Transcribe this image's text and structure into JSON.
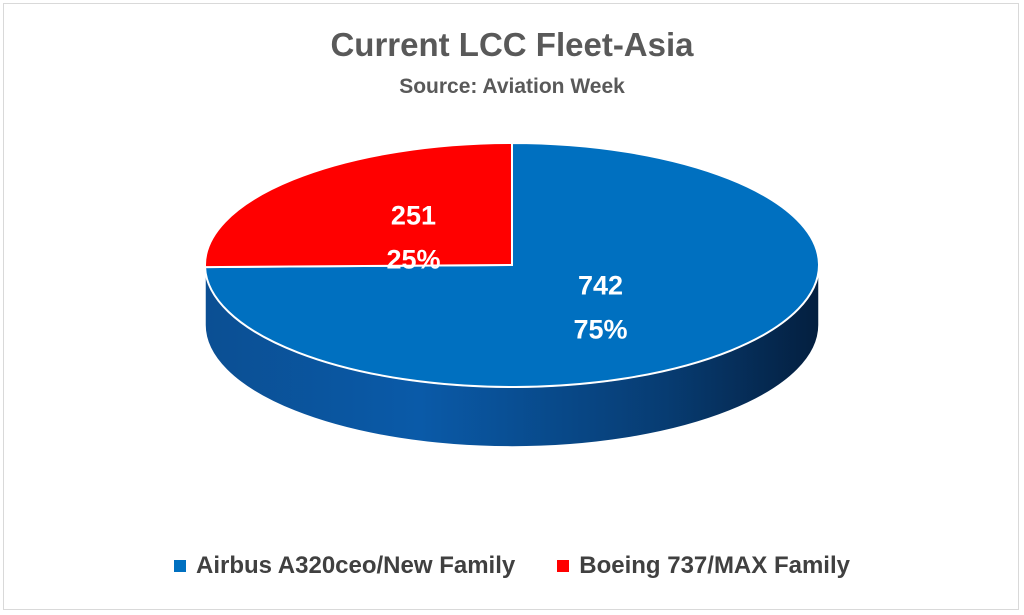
{
  "chart_data": {
    "type": "pie",
    "title": "Current LCC Fleet-Asia",
    "subtitle": "Source: Aviation Week",
    "legend_position": "bottom",
    "series": [
      {
        "name": "Airbus A320ceo/New Family",
        "value": 742,
        "percent": "75%",
        "color": "#0070C0"
      },
      {
        "name": "Boeing 737/MAX Family",
        "value": 251,
        "percent": "25%",
        "color": "#FF0000"
      }
    ],
    "data_labels": [
      {
        "value": "742",
        "percent": "75%"
      },
      {
        "value": "251",
        "percent": "25%"
      }
    ]
  }
}
